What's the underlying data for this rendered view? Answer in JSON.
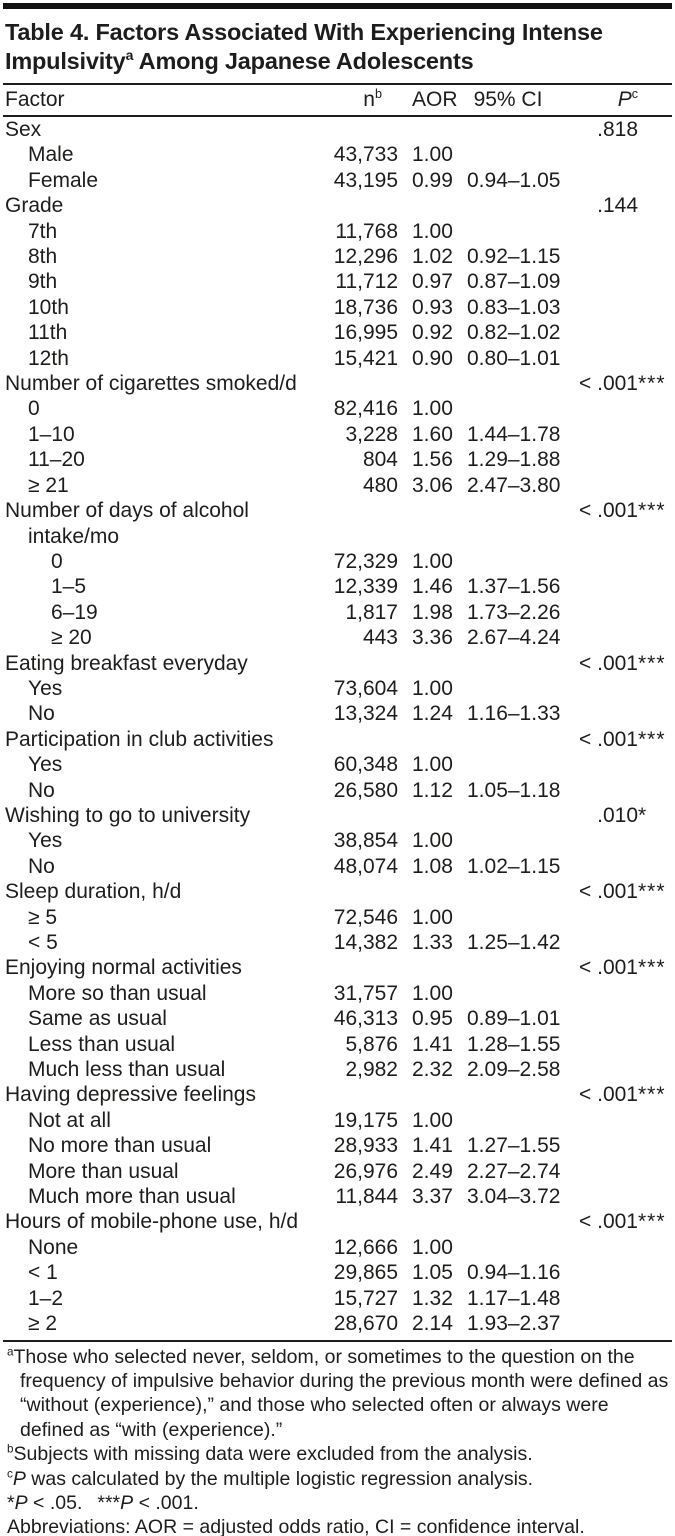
{
  "title": {
    "part1": "Table 4. Factors Associated With Experiencing Intense Impulsivity",
    "sup": "a",
    "part2": "Among Japanese Adolescents"
  },
  "columns": {
    "factor": "Factor",
    "n": "n",
    "n_sup": "b",
    "aor": "AOR",
    "ci": "95% CI",
    "p": "P",
    "p_sup": "c"
  },
  "rows": [
    {
      "label": "Sex",
      "indent": 0,
      "n": "",
      "aor": "",
      "ci": "",
      "p": ".818",
      "stars": ""
    },
    {
      "label": "Male",
      "indent": 1,
      "n": "43,733",
      "aor": "1.00",
      "ci": "",
      "p": "",
      "stars": ""
    },
    {
      "label": "Female",
      "indent": 1,
      "n": "43,195",
      "aor": "0.99",
      "ci": "0.94–1.05",
      "p": "",
      "stars": ""
    },
    {
      "label": "Grade",
      "indent": 0,
      "n": "",
      "aor": "",
      "ci": "",
      "p": ".144",
      "stars": ""
    },
    {
      "label": "7th",
      "indent": 1,
      "n": "11,768",
      "aor": "1.00",
      "ci": "",
      "p": "",
      "stars": ""
    },
    {
      "label": "8th",
      "indent": 1,
      "n": "12,296",
      "aor": "1.02",
      "ci": "0.92–1.15",
      "p": "",
      "stars": ""
    },
    {
      "label": "9th",
      "indent": 1,
      "n": "11,712",
      "aor": "0.97",
      "ci": "0.87–1.09",
      "p": "",
      "stars": ""
    },
    {
      "label": "10th",
      "indent": 1,
      "n": "18,736",
      "aor": "0.93",
      "ci": "0.83–1.03",
      "p": "",
      "stars": ""
    },
    {
      "label": "11th",
      "indent": 1,
      "n": "16,995",
      "aor": "0.92",
      "ci": "0.82–1.02",
      "p": "",
      "stars": ""
    },
    {
      "label": "12th",
      "indent": 1,
      "n": "15,421",
      "aor": "0.90",
      "ci": "0.80–1.01",
      "p": "",
      "stars": ""
    },
    {
      "label": "Number of cigarettes smoked/d",
      "indent": 0,
      "n": "",
      "aor": "",
      "ci": "",
      "p": "< .001",
      "stars": "***"
    },
    {
      "label": "0",
      "indent": 1,
      "n": "82,416",
      "aor": "1.00",
      "ci": "",
      "p": "",
      "stars": ""
    },
    {
      "label": "1–10",
      "indent": 1,
      "n": "3,228",
      "aor": "1.60",
      "ci": "1.44–1.78",
      "p": "",
      "stars": ""
    },
    {
      "label": "11–20",
      "indent": 1,
      "n": "804",
      "aor": "1.56",
      "ci": "1.29–1.88",
      "p": "",
      "stars": ""
    },
    {
      "label": "≥ 21",
      "indent": 1,
      "n": "480",
      "aor": "3.06",
      "ci": "2.47–3.80",
      "p": "",
      "stars": ""
    },
    {
      "label": "Number of days of alcohol",
      "indent": 0,
      "n": "",
      "aor": "",
      "ci": "",
      "p": "< .001",
      "stars": "***"
    },
    {
      "label": "intake/mo",
      "indent": 1,
      "n": "",
      "aor": "",
      "ci": "",
      "p": "",
      "stars": ""
    },
    {
      "label": "0",
      "indent": 2,
      "n": "72,329",
      "aor": "1.00",
      "ci": "",
      "p": "",
      "stars": ""
    },
    {
      "label": "1–5",
      "indent": 2,
      "n": "12,339",
      "aor": "1.46",
      "ci": "1.37–1.56",
      "p": "",
      "stars": ""
    },
    {
      "label": "6–19",
      "indent": 2,
      "n": "1,817",
      "aor": "1.98",
      "ci": "1.73–2.26",
      "p": "",
      "stars": ""
    },
    {
      "label": "≥ 20",
      "indent": 2,
      "n": "443",
      "aor": "3.36",
      "ci": "2.67–4.24",
      "p": "",
      "stars": ""
    },
    {
      "label": "Eating breakfast everyday",
      "indent": 0,
      "n": "",
      "aor": "",
      "ci": "",
      "p": "< .001",
      "stars": "***"
    },
    {
      "label": "Yes",
      "indent": 1,
      "n": "73,604",
      "aor": "1.00",
      "ci": "",
      "p": "",
      "stars": ""
    },
    {
      "label": "No",
      "indent": 1,
      "n": "13,324",
      "aor": "1.24",
      "ci": "1.16–1.33",
      "p": "",
      "stars": ""
    },
    {
      "label": "Participation in club activities",
      "indent": 0,
      "n": "",
      "aor": "",
      "ci": "",
      "p": "< .001",
      "stars": "***"
    },
    {
      "label": "Yes",
      "indent": 1,
      "n": "60,348",
      "aor": "1.00",
      "ci": "",
      "p": "",
      "stars": ""
    },
    {
      "label": "No",
      "indent": 1,
      "n": "26,580",
      "aor": "1.12",
      "ci": "1.05–1.18",
      "p": "",
      "stars": ""
    },
    {
      "label": "Wishing to go to university",
      "indent": 0,
      "n": "",
      "aor": "",
      "ci": "",
      "p": ".010",
      "stars": "*"
    },
    {
      "label": "Yes",
      "indent": 1,
      "n": "38,854",
      "aor": "1.00",
      "ci": "",
      "p": "",
      "stars": ""
    },
    {
      "label": "No",
      "indent": 1,
      "n": "48,074",
      "aor": "1.08",
      "ci": "1.02–1.15",
      "p": "",
      "stars": ""
    },
    {
      "label": "Sleep duration, h/d",
      "indent": 0,
      "n": "",
      "aor": "",
      "ci": "",
      "p": "< .001",
      "stars": "***"
    },
    {
      "label": "≥ 5",
      "indent": 1,
      "n": "72,546",
      "aor": "1.00",
      "ci": "",
      "p": "",
      "stars": ""
    },
    {
      "label": "< 5",
      "indent": 1,
      "n": "14,382",
      "aor": "1.33",
      "ci": "1.25–1.42",
      "p": "",
      "stars": ""
    },
    {
      "label": "Enjoying normal activities",
      "indent": 0,
      "n": "",
      "aor": "",
      "ci": "",
      "p": "< .001",
      "stars": "***"
    },
    {
      "label": "More so than usual",
      "indent": 1,
      "n": "31,757",
      "aor": "1.00",
      "ci": "",
      "p": "",
      "stars": ""
    },
    {
      "label": "Same as usual",
      "indent": 1,
      "n": "46,313",
      "aor": "0.95",
      "ci": "0.89–1.01",
      "p": "",
      "stars": ""
    },
    {
      "label": "Less than usual",
      "indent": 1,
      "n": "5,876",
      "aor": "1.41",
      "ci": "1.28–1.55",
      "p": "",
      "stars": ""
    },
    {
      "label": "Much less than usual",
      "indent": 1,
      "n": "2,982",
      "aor": "2.32",
      "ci": "2.09–2.58",
      "p": "",
      "stars": ""
    },
    {
      "label": "Having depressive feelings",
      "indent": 0,
      "n": "",
      "aor": "",
      "ci": "",
      "p": "< .001",
      "stars": "***"
    },
    {
      "label": "Not at all",
      "indent": 1,
      "n": "19,175",
      "aor": "1.00",
      "ci": "",
      "p": "",
      "stars": ""
    },
    {
      "label": "No more than usual",
      "indent": 1,
      "n": "28,933",
      "aor": "1.41",
      "ci": "1.27–1.55",
      "p": "",
      "stars": ""
    },
    {
      "label": "More than usual",
      "indent": 1,
      "n": "26,976",
      "aor": "2.49",
      "ci": "2.27–2.74",
      "p": "",
      "stars": ""
    },
    {
      "label": "Much more than usual",
      "indent": 1,
      "n": "11,844",
      "aor": "3.37",
      "ci": "3.04–3.72",
      "p": "",
      "stars": ""
    },
    {
      "label": "Hours of mobile-phone use, h/d",
      "indent": 0,
      "n": "",
      "aor": "",
      "ci": "",
      "p": "< .001",
      "stars": "***"
    },
    {
      "label": "None",
      "indent": 1,
      "n": "12,666",
      "aor": "1.00",
      "ci": "",
      "p": "",
      "stars": ""
    },
    {
      "label": "< 1",
      "indent": 1,
      "n": "29,865",
      "aor": "1.05",
      "ci": "0.94–1.16",
      "p": "",
      "stars": ""
    },
    {
      "label": "1–2",
      "indent": 1,
      "n": "15,727",
      "aor": "1.32",
      "ci": "1.17–1.48",
      "p": "",
      "stars": ""
    },
    {
      "label": "≥ 2",
      "indent": 1,
      "n": "28,670",
      "aor": "2.14",
      "ci": "1.93–2.37",
      "p": "",
      "stars": ""
    }
  ],
  "footnotes": {
    "a": {
      "sup": "a",
      "text": "Those who selected never, seldom, or sometimes to the question on the frequency of impulsive behavior during the previous month were defined as “without (experience),” and those who selected often or always were defined as “with (experience).”"
    },
    "b": {
      "sup": "b",
      "text": "Subjects with missing data were excluded from the analysis."
    },
    "c": {
      "sup": "c",
      "p": "P",
      "text": " was calculated by the multiple logistic regression analysis."
    },
    "sig": {
      "s1": "*",
      "p1": "P",
      "t1": " < .05.",
      "s2": "***",
      "p2": "P",
      "t2": " < .001."
    },
    "abbrev": "Abbreviations: AOR = adjusted odds ratio, CI = confidence interval."
  }
}
